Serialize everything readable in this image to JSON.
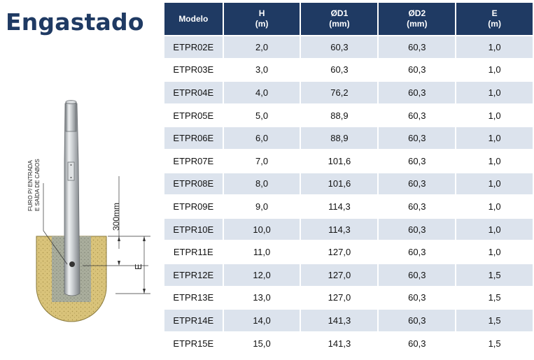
{
  "title": "Engastado",
  "drawing": {
    "side_label_line1": "FURO P/ ENTRADA",
    "side_label_line2": "E SAÍDA DE CABOS",
    "depth_label": "300mm",
    "e_label": "E"
  },
  "table": {
    "headers": [
      {
        "line1": "Modelo",
        "line2": ""
      },
      {
        "line1": "H",
        "line2": "(m)"
      },
      {
        "line1": "ØD1",
        "line2": "(mm)"
      },
      {
        "line1": "ØD2",
        "line2": "(mm)"
      },
      {
        "line1": "E",
        "line2": "(m)"
      }
    ],
    "rows": [
      [
        "ETPR02E",
        "2,0",
        "60,3",
        "60,3",
        "1,0"
      ],
      [
        "ETPR03E",
        "3,0",
        "60,3",
        "60,3",
        "1,0"
      ],
      [
        "ETPR04E",
        "4,0",
        "76,2",
        "60,3",
        "1,0"
      ],
      [
        "ETPR05E",
        "5,0",
        "88,9",
        "60,3",
        "1,0"
      ],
      [
        "ETPR06E",
        "6,0",
        "88,9",
        "60,3",
        "1,0"
      ],
      [
        "ETPR07E",
        "7,0",
        "101,6",
        "60,3",
        "1,0"
      ],
      [
        "ETPR08E",
        "8,0",
        "101,6",
        "60,3",
        "1,0"
      ],
      [
        "ETPR09E",
        "9,0",
        "114,3",
        "60,3",
        "1,0"
      ],
      [
        "ETPR10E",
        "10,0",
        "114,3",
        "60,3",
        "1,0"
      ],
      [
        "ETPR11E",
        "11,0",
        "127,0",
        "60,3",
        "1,0"
      ],
      [
        "ETPR12E",
        "12,0",
        "127,0",
        "60,3",
        "1,5"
      ],
      [
        "ETPR13E",
        "13,0",
        "127,0",
        "60,3",
        "1,5"
      ],
      [
        "ETPR14E",
        "14,0",
        "141,3",
        "60,3",
        "1,5"
      ],
      [
        "ETPR15E",
        "15,0",
        "141,3",
        "60,3",
        "1,5"
      ]
    ]
  }
}
